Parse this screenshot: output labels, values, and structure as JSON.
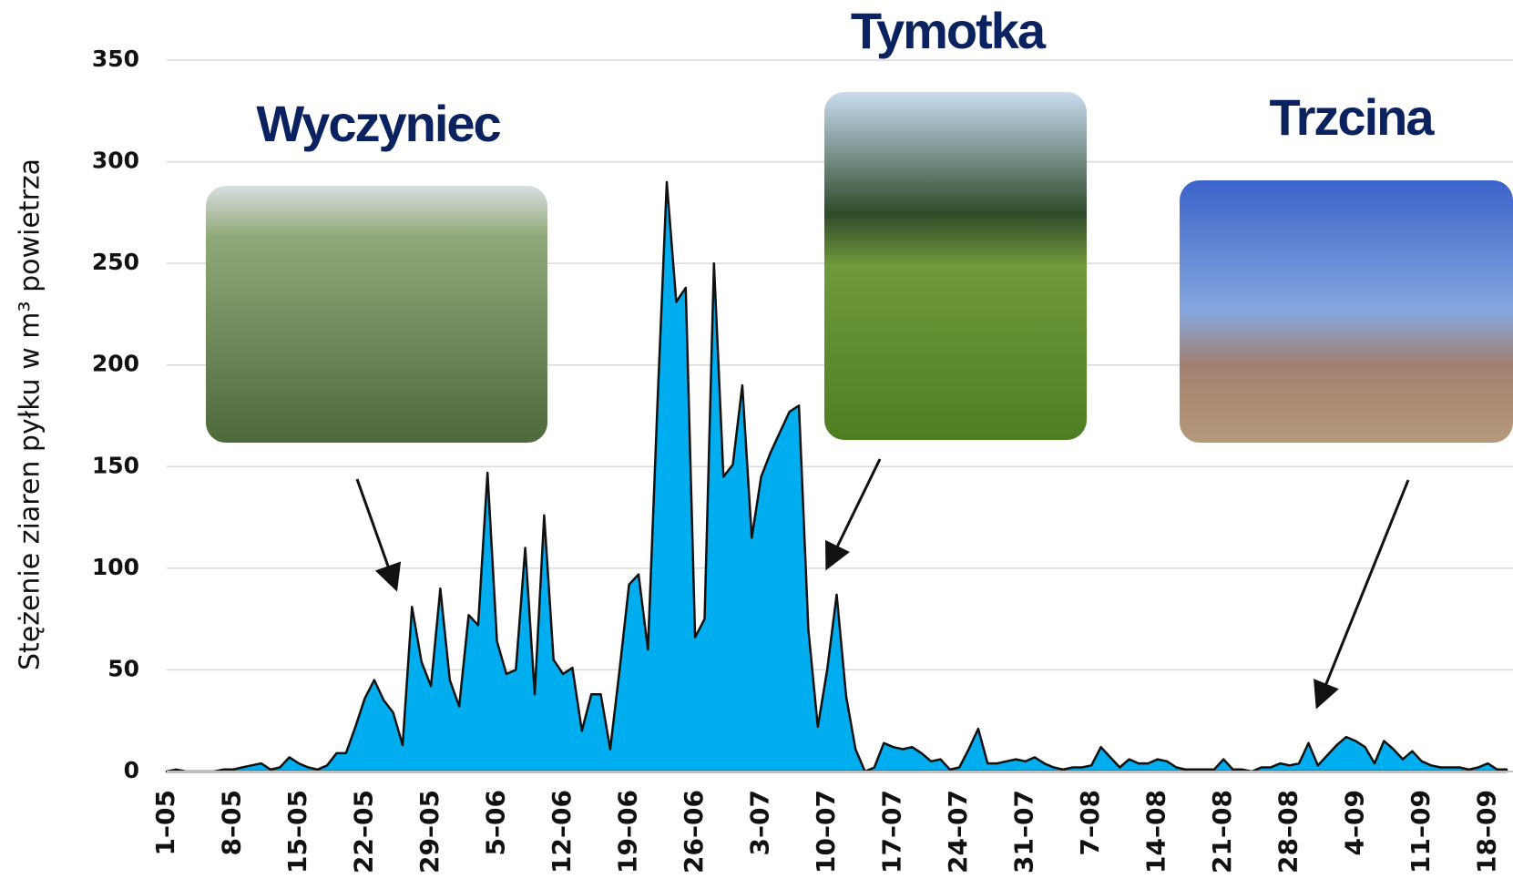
{
  "chart_data": {
    "type": "area",
    "ylabel": "Stężenie ziaren pyłku w m³ powietrza",
    "annotations": [
      "Wyczyniec",
      "Tymotka",
      "Trzcina"
    ],
    "categories": [
      "1–05",
      null,
      null,
      null,
      null,
      null,
      null,
      "8–05",
      null,
      null,
      null,
      null,
      null,
      null,
      "15–05",
      null,
      null,
      null,
      null,
      null,
      null,
      "22–05",
      null,
      null,
      null,
      null,
      null,
      null,
      "29–05",
      null,
      null,
      null,
      null,
      null,
      null,
      "5–06",
      null,
      null,
      null,
      null,
      null,
      null,
      "12–06",
      null,
      null,
      null,
      null,
      null,
      null,
      "19–06",
      null,
      null,
      null,
      null,
      null,
      null,
      "26–06",
      null,
      null,
      null,
      null,
      null,
      null,
      "3–07",
      null,
      null,
      null,
      null,
      null,
      null,
      "10–07",
      null,
      null,
      null,
      null,
      null,
      null,
      "17–07",
      null,
      null,
      null,
      null,
      null,
      null,
      "24–07",
      null,
      null,
      null,
      null,
      null,
      null,
      "31–07",
      null,
      null,
      null,
      null,
      null,
      null,
      "7–08",
      null,
      null,
      null,
      null,
      null,
      null,
      "14–08",
      null,
      null,
      null,
      null,
      null,
      null,
      "21–08",
      null,
      null,
      null,
      null,
      null,
      null,
      "28–08",
      null,
      null,
      null,
      null,
      null,
      null,
      "4–09",
      null,
      null,
      null,
      null,
      null,
      null,
      "11–09",
      null,
      null,
      null,
      null,
      null,
      null,
      "18–09",
      null,
      null
    ],
    "values": [
      0,
      1,
      0,
      0,
      0,
      0,
      1,
      1,
      2,
      3,
      4,
      1,
      2,
      7,
      4,
      2,
      1,
      3,
      9,
      9,
      22,
      36,
      45,
      35,
      29,
      13,
      81,
      54,
      42,
      90,
      45,
      32,
      77,
      72,
      147,
      64,
      48,
      50,
      110,
      38,
      126,
      55,
      48,
      51,
      20,
      38,
      38,
      11,
      50,
      92,
      97,
      60,
      180,
      290,
      231,
      238,
      66,
      75,
      250,
      145,
      151,
      190,
      115,
      145,
      157,
      167,
      177,
      180,
      70,
      22,
      50,
      87,
      37,
      11,
      0,
      2,
      14,
      12,
      11,
      12,
      9,
      5,
      6,
      1,
      2,
      11,
      21,
      4,
      4,
      5,
      6,
      5,
      7,
      4,
      2,
      1,
      2,
      2,
      3,
      12,
      7,
      2,
      6,
      4,
      4,
      6,
      5,
      2,
      1,
      1,
      1,
      1,
      6,
      1,
      1,
      0,
      2,
      2,
      4,
      3,
      4,
      14,
      3,
      8,
      13,
      17,
      15,
      12,
      4,
      15,
      11,
      6,
      10,
      5,
      3,
      2,
      2,
      2,
      1,
      2,
      4,
      1,
      1
    ],
    "color": "#00aeef",
    "ylim": [
      0,
      350
    ],
    "yticks": [
      0,
      50,
      100,
      150,
      200,
      250,
      300,
      350
    ],
    "grid": true
  }
}
